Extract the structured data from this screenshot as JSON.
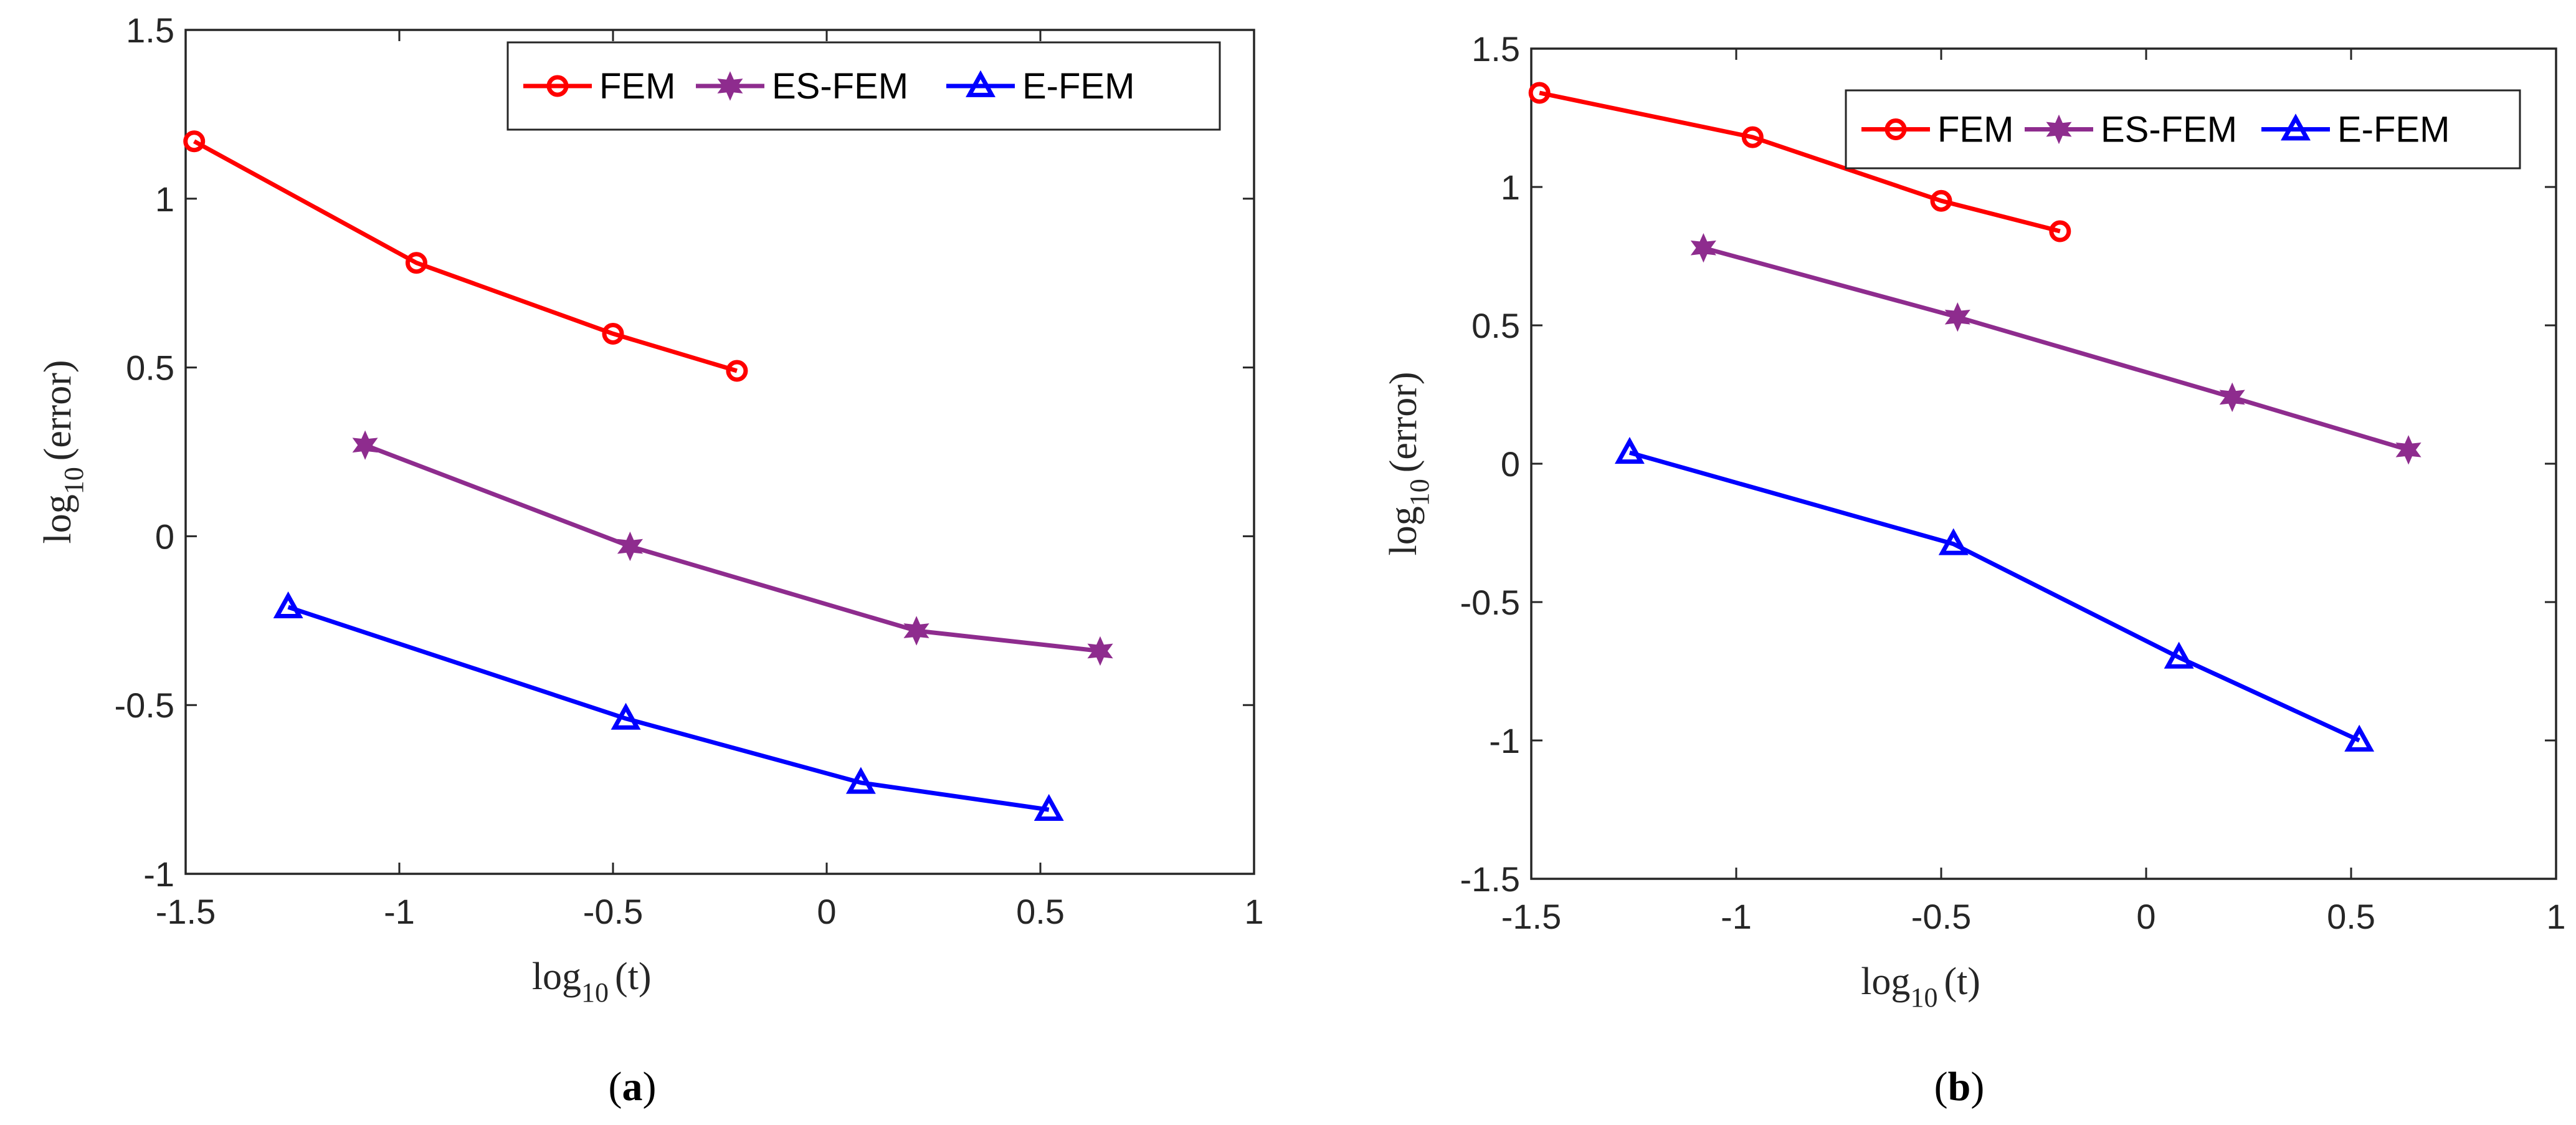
{
  "colors": {
    "FEM": "#ff0000",
    "ES-FEM": "#8e2c8e",
    "E-FEM": "#0000ff",
    "axis": "#262626"
  },
  "chart_data": [
    {
      "type": "line",
      "panel_label": "a",
      "xlabel": "log",
      "xlabel_sub": "10",
      "xlabel_arg": "(t)",
      "ylabel": "log",
      "ylabel_sub": "10",
      "ylabel_arg": "(error)",
      "xlim": [
        -1.5,
        1
      ],
      "ylim": [
        -1,
        1.5
      ],
      "xticks": [
        -1.5,
        -1,
        -0.5,
        0,
        0.5,
        1
      ],
      "xtick_labels": [
        "-1.5",
        "-1",
        "-0.5",
        "0",
        "0.5",
        "1"
      ],
      "yticks": [
        -1,
        -0.5,
        0,
        0.5,
        1,
        1.5
      ],
      "ytick_labels": [
        "-1",
        "-0.5",
        "0",
        "0.5",
        "1",
        "1.5"
      ],
      "legend_position": "top-right",
      "series": [
        {
          "name": "FEM",
          "marker": "circle",
          "x": [
            -1.48,
            -0.96,
            -0.5,
            -0.21
          ],
          "y": [
            1.17,
            0.81,
            0.6,
            0.49
          ]
        },
        {
          "name": "ES-FEM",
          "marker": "star",
          "x": [
            -1.08,
            -0.46,
            0.21,
            0.64
          ],
          "y": [
            0.27,
            -0.03,
            -0.28,
            -0.34
          ]
        },
        {
          "name": "E-FEM",
          "marker": "triangle",
          "x": [
            -1.26,
            -0.47,
            0.08,
            0.52
          ],
          "y": [
            -0.21,
            -0.54,
            -0.73,
            -0.81
          ]
        }
      ]
    },
    {
      "type": "line",
      "panel_label": "b",
      "xlabel": "log",
      "xlabel_sub": "10",
      "xlabel_arg": "(t)",
      "ylabel": "log",
      "ylabel_sub": "10",
      "ylabel_arg": "(error)",
      "xlim": [
        -1.5,
        1
      ],
      "ylim": [
        -1.5,
        1.5
      ],
      "xticks": [
        -1.5,
        -1,
        -0.5,
        0,
        0.5,
        1
      ],
      "xtick_labels": [
        "-1.5",
        "-1",
        "-0.5",
        "0",
        "0.5",
        "1"
      ],
      "yticks": [
        -1.5,
        -1,
        -0.5,
        0,
        0.5,
        1,
        1.5
      ],
      "ytick_labels": [
        "-1.5",
        "-1",
        "-0.5",
        "0",
        "0.5",
        "1",
        "1.5"
      ],
      "legend_position": "top-right",
      "series": [
        {
          "name": "FEM",
          "marker": "circle",
          "x": [
            -1.48,
            -0.96,
            -0.5,
            -0.21
          ],
          "y": [
            1.34,
            1.18,
            0.95,
            0.84
          ]
        },
        {
          "name": "ES-FEM",
          "marker": "star",
          "x": [
            -1.08,
            -0.46,
            0.21,
            0.64
          ],
          "y": [
            0.78,
            0.53,
            0.24,
            0.05
          ]
        },
        {
          "name": "E-FEM",
          "marker": "triangle",
          "x": [
            -1.26,
            -0.47,
            0.08,
            0.52
          ],
          "y": [
            0.04,
            -0.29,
            -0.7,
            -1.0
          ]
        }
      ]
    }
  ]
}
